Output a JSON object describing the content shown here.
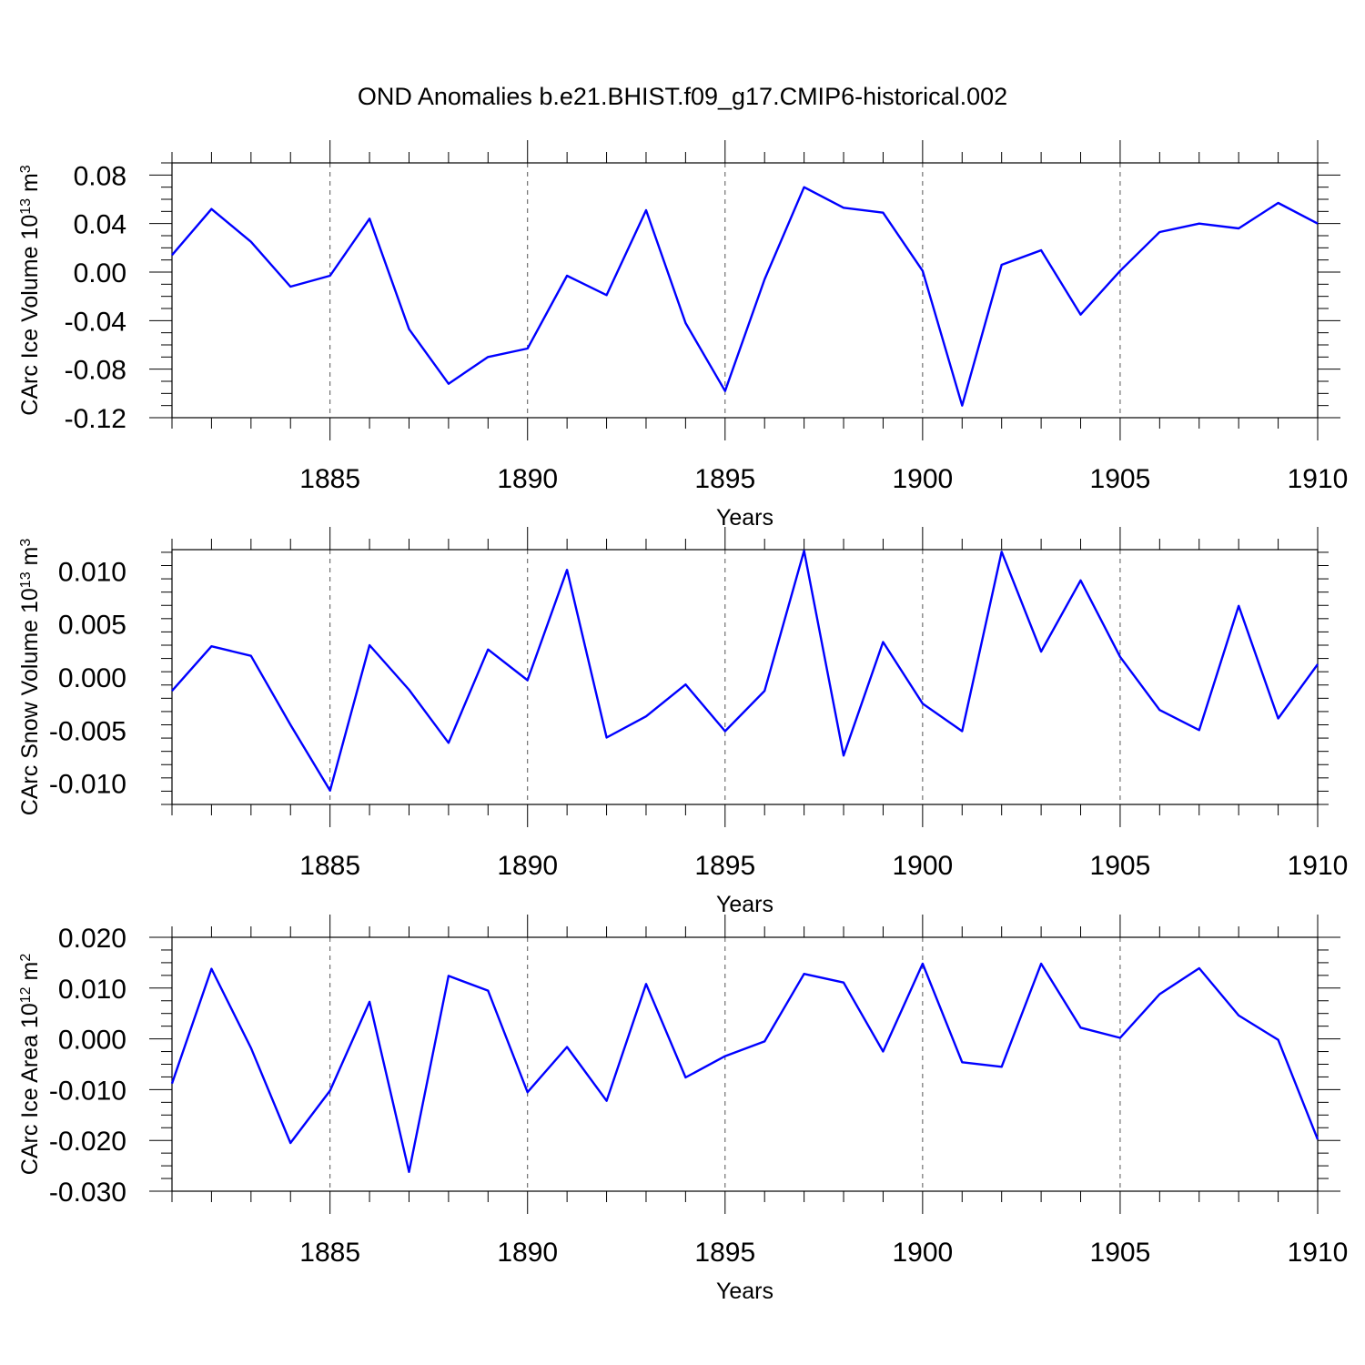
{
  "title": "OND Anomalies b.e21.BHIST.f09_g17.CMIP6-historical.002",
  "line_color": "#0000ff",
  "chart_data": [
    {
      "type": "line",
      "xlabel": "Years",
      "ylabel": "CArc Ice Volume 10",
      "ylabel_exponent": "13",
      "ylabel_unit": "m",
      "ylabel_unit_exponent": "3",
      "xlim": [
        1881,
        1910
      ],
      "ylim": [
        -0.12,
        0.09
      ],
      "xticks": [
        1885,
        1890,
        1895,
        1900,
        1905,
        1910
      ],
      "yticks": [
        -0.12,
        -0.08,
        -0.04,
        0.0,
        0.04,
        0.08
      ],
      "ytick_labels": [
        "-0.12",
        "-0.08",
        "-0.04",
        "0.00",
        "0.04",
        "0.08"
      ],
      "grid": "vertical dashed at major x ticks",
      "x": [
        1881,
        1882,
        1883,
        1884,
        1885,
        1886,
        1887,
        1888,
        1889,
        1890,
        1891,
        1892,
        1893,
        1894,
        1895,
        1896,
        1897,
        1898,
        1899,
        1900,
        1901,
        1902,
        1903,
        1904,
        1905,
        1906,
        1907,
        1908,
        1909,
        1910
      ],
      "values": [
        0.014,
        0.052,
        0.025,
        -0.012,
        -0.003,
        0.044,
        -0.047,
        -0.092,
        -0.07,
        -0.063,
        -0.003,
        -0.019,
        0.051,
        -0.042,
        -0.098,
        -0.006,
        0.07,
        0.053,
        0.049,
        0.001,
        -0.11,
        0.006,
        0.018,
        -0.035,
        0.001,
        0.033,
        0.04,
        0.036,
        0.057,
        0.04
      ]
    },
    {
      "type": "line",
      "xlabel": "Years",
      "ylabel": "CArc Snow Volume 10",
      "ylabel_exponent": "13",
      "ylabel_unit": "m",
      "ylabel_unit_exponent": "3",
      "xlim": [
        1881,
        1910
      ],
      "ylim": [
        -0.012,
        0.012
      ],
      "xticks": [
        1885,
        1890,
        1895,
        1900,
        1905,
        1910
      ],
      "yticks": [
        -0.01,
        -0.005,
        0.0,
        0.005,
        0.01
      ],
      "ytick_labels": [
        "-0.010",
        "-0.005",
        "0.000",
        "0.005",
        "0.010"
      ],
      "grid": "vertical dashed at major x ticks",
      "x": [
        1881,
        1882,
        1883,
        1884,
        1885,
        1886,
        1887,
        1888,
        1889,
        1890,
        1891,
        1892,
        1893,
        1894,
        1895,
        1896,
        1897,
        1898,
        1899,
        1900,
        1901,
        1902,
        1903,
        1904,
        1905,
        1906,
        1907,
        1908,
        1909,
        1910
      ],
      "values": [
        -0.0013,
        0.0029,
        0.002,
        -0.0045,
        -0.0107,
        0.003,
        -0.0012,
        -0.0062,
        0.0026,
        -0.0003,
        0.0101,
        -0.0057,
        -0.0037,
        -0.0007,
        -0.0051,
        -0.0013,
        0.0119,
        -0.0074,
        0.0033,
        -0.0025,
        -0.0051,
        0.0118,
        0.0024,
        0.0091,
        0.0019,
        -0.0031,
        -0.005,
        0.0067,
        -0.0039,
        0.0012
      ]
    },
    {
      "type": "line",
      "xlabel": "Years",
      "ylabel": "CArc Ice Area 10",
      "ylabel_exponent": "12",
      "ylabel_unit": "m",
      "ylabel_unit_exponent": "2",
      "xlim": [
        1881,
        1910
      ],
      "ylim": [
        -0.03,
        0.02
      ],
      "xticks": [
        1885,
        1890,
        1895,
        1900,
        1905,
        1910
      ],
      "yticks": [
        -0.03,
        -0.02,
        -0.01,
        0.0,
        0.01,
        0.02
      ],
      "ytick_labels": [
        "-0.030",
        "-0.020",
        "-0.010",
        "0.000",
        "0.010",
        "0.020"
      ],
      "grid": "vertical dashed at major x ticks",
      "x": [
        1881,
        1882,
        1883,
        1884,
        1885,
        1886,
        1887,
        1888,
        1889,
        1890,
        1891,
        1892,
        1893,
        1894,
        1895,
        1896,
        1897,
        1898,
        1899,
        1900,
        1901,
        1902,
        1903,
        1904,
        1905,
        1906,
        1907,
        1908,
        1909,
        1910
      ],
      "values": [
        -0.0088,
        0.0138,
        -0.0018,
        -0.0205,
        -0.0102,
        0.0073,
        -0.0262,
        0.0124,
        0.0095,
        -0.0105,
        -0.0016,
        -0.0122,
        0.0108,
        -0.0076,
        -0.0034,
        -0.0005,
        0.0128,
        0.0111,
        -0.0025,
        0.0148,
        -0.0046,
        -0.0055,
        0.0148,
        0.0022,
        0.0002,
        0.0088,
        0.0139,
        0.0046,
        -0.0002,
        -0.0198
      ]
    }
  ]
}
